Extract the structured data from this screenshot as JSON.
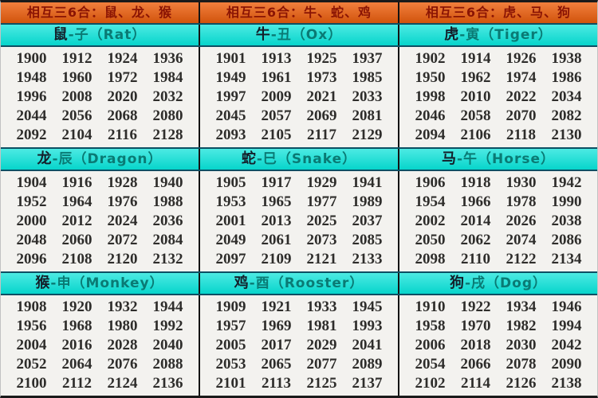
{
  "colors": {
    "banner_bg": "#ee5f0d",
    "banner_text": "#8a1404",
    "cyan_bg": "#07e2d8",
    "cyan_text": "#0a7a74",
    "cyan_animal_text": "#141f2a",
    "year_text": "#2e2d2b",
    "divider_dark": "#141414",
    "divider_teal": "#0d4f63",
    "years_bg": "#f3f2ef"
  },
  "banners": [
    "相互三6合：鼠、龙、猴",
    "相互三6合：牛、蛇、鸡",
    "相互三6合：虎、马、狗"
  ],
  "bands": [
    {
      "groups": [
        {
          "animal": "鼠",
          "branch": "子",
          "english": "Rat",
          "years": [
            1900,
            1912,
            1924,
            1936,
            1948,
            1960,
            1972,
            1984,
            1996,
            2008,
            2020,
            2032,
            2044,
            2056,
            2068,
            2080,
            2092,
            2104,
            2116,
            2128
          ]
        },
        {
          "animal": "牛",
          "branch": "丑",
          "english": "Ox",
          "years": [
            1901,
            1913,
            1925,
            1937,
            1949,
            1961,
            1973,
            1985,
            1997,
            2009,
            2021,
            2033,
            2045,
            2057,
            2069,
            2081,
            2093,
            2105,
            2117,
            2129
          ]
        },
        {
          "animal": "虎",
          "branch": "寅",
          "english": "Tiger",
          "years": [
            1902,
            1914,
            1926,
            1938,
            1950,
            1962,
            1974,
            1986,
            1998,
            2010,
            2022,
            2034,
            2046,
            2058,
            2070,
            2082,
            2094,
            2106,
            2118,
            2130
          ]
        }
      ]
    },
    {
      "groups": [
        {
          "animal": "龙",
          "branch": "辰",
          "english": "Dragon",
          "years": [
            1904,
            1916,
            1928,
            1940,
            1952,
            1964,
            1976,
            1988,
            2000,
            2012,
            2024,
            2036,
            2048,
            2060,
            2072,
            2084,
            2096,
            2108,
            2120,
            2132
          ]
        },
        {
          "animal": "蛇",
          "branch": "巳",
          "english": "Snake",
          "years": [
            1905,
            1917,
            1929,
            1941,
            1953,
            1965,
            1977,
            1989,
            2001,
            2013,
            2025,
            2037,
            2049,
            2061,
            2073,
            2085,
            2097,
            2109,
            2121,
            2133
          ]
        },
        {
          "animal": "马",
          "branch": "午",
          "english": "Horse",
          "years": [
            1906,
            1918,
            1930,
            1942,
            1954,
            1966,
            1978,
            1990,
            2002,
            2014,
            2026,
            2038,
            2050,
            2062,
            2074,
            2086,
            2098,
            2110,
            2122,
            2134
          ]
        }
      ]
    },
    {
      "groups": [
        {
          "animal": "猴",
          "branch": "申",
          "english": "Monkey",
          "years": [
            1908,
            1920,
            1932,
            1944,
            1956,
            1968,
            1980,
            1992,
            2004,
            2016,
            2028,
            2040,
            2052,
            2064,
            2076,
            2088,
            2100,
            2112,
            2124,
            2136
          ]
        },
        {
          "animal": "鸡",
          "branch": "酉",
          "english": "Rooster",
          "years": [
            1909,
            1921,
            1933,
            1945,
            1957,
            1969,
            1981,
            1993,
            2005,
            2017,
            2029,
            2041,
            2053,
            2065,
            2077,
            2089,
            2101,
            2113,
            2125,
            2137
          ]
        },
        {
          "animal": "狗",
          "branch": "戌",
          "english": "Dog",
          "years": [
            1910,
            1922,
            1934,
            1946,
            1958,
            1970,
            1982,
            1994,
            2006,
            2018,
            2030,
            2042,
            2054,
            2066,
            2078,
            2090,
            2102,
            2114,
            2126,
            2138
          ]
        }
      ]
    }
  ]
}
